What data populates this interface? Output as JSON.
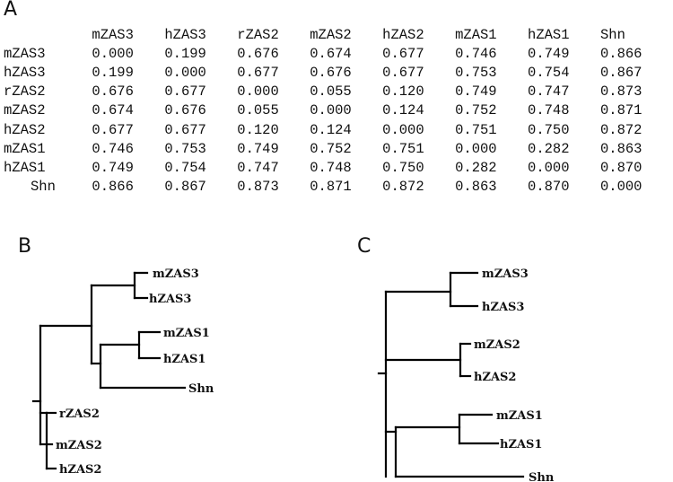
{
  "panels": {
    "a": "A",
    "b": "B",
    "c": "C"
  },
  "matrix": {
    "columns": [
      "mZAS3",
      "hZAS3",
      "rZAS2",
      "mZAS2",
      "hZAS2",
      "mZAS1",
      "hZAS1",
      "Shn"
    ],
    "rows": [
      {
        "label": "mZAS3",
        "values": [
          "0.000",
          "0.199",
          "0.676",
          "0.674",
          "0.677",
          "0.746",
          "0.749",
          "0.866"
        ]
      },
      {
        "label": "hZAS3",
        "values": [
          "0.199",
          "0.000",
          "0.677",
          "0.676",
          "0.677",
          "0.753",
          "0.754",
          "0.867"
        ]
      },
      {
        "label": "rZAS2",
        "values": [
          "0.676",
          "0.677",
          "0.000",
          "0.055",
          "0.120",
          "0.749",
          "0.747",
          "0.873"
        ]
      },
      {
        "label": "mZAS2",
        "values": [
          "0.674",
          "0.676",
          "0.055",
          "0.000",
          "0.124",
          "0.752",
          "0.748",
          "0.871"
        ]
      },
      {
        "label": "hZAS2",
        "values": [
          "0.677",
          "0.677",
          "0.120",
          "0.124",
          "0.000",
          "0.751",
          "0.750",
          "0.872"
        ]
      },
      {
        "label": "mZAS1",
        "values": [
          "0.746",
          "0.753",
          "0.749",
          "0.752",
          "0.751",
          "0.000",
          "0.282",
          "0.863"
        ]
      },
      {
        "label": "hZAS1",
        "values": [
          "0.749",
          "0.754",
          "0.747",
          "0.748",
          "0.750",
          "0.282",
          "0.000",
          "0.870"
        ]
      },
      {
        "label": "Shn",
        "values": [
          "0.866",
          "0.867",
          "0.873",
          "0.871",
          "0.872",
          "0.863",
          "0.870",
          "0.000"
        ]
      }
    ]
  },
  "tree_b": {
    "leaves": [
      "mZAS3",
      "hZAS3",
      "mZAS1",
      "hZAS1",
      "Shn",
      "rZAS2",
      "mZAS2",
      "hZAS2"
    ]
  },
  "tree_c": {
    "leaves": [
      "mZAS3",
      "hZAS3",
      "mZAS2",
      "hZAS2",
      "mZAS1",
      "hZAS1",
      "Shn"
    ]
  }
}
